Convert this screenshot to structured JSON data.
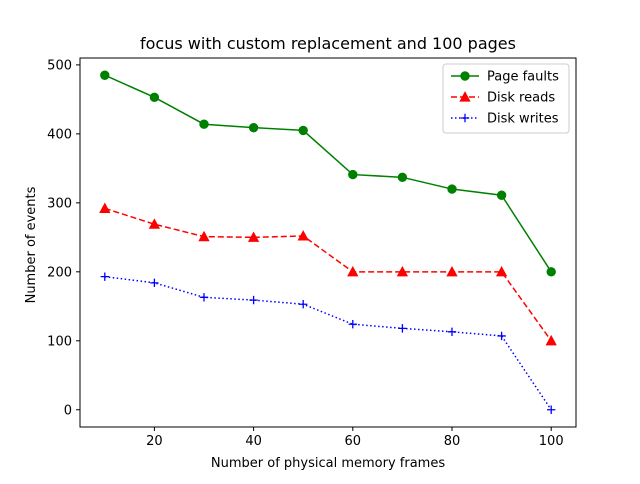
{
  "chart_data": {
    "type": "line",
    "title": "focus with custom replacement and 100 pages",
    "xlabel": "Number of physical memory frames",
    "ylabel": "Number of events",
    "xlim": [
      5,
      105
    ],
    "ylim": [
      -25,
      510
    ],
    "xticks": [
      20,
      40,
      60,
      80,
      100
    ],
    "yticks": [
      0,
      100,
      200,
      300,
      400,
      500
    ],
    "grid": false,
    "legend_position": "top-right",
    "x": [
      10,
      20,
      30,
      40,
      50,
      60,
      70,
      80,
      90,
      100
    ],
    "series": [
      {
        "name": "Page faults",
        "color": "#008000",
        "line_style": "solid",
        "marker": "circle",
        "values": [
          485,
          453,
          414,
          409,
          405,
          341,
          337,
          320,
          311,
          200
        ]
      },
      {
        "name": "Disk reads",
        "color": "#ff0000",
        "line_style": "dashed",
        "marker": "triangle",
        "values": [
          292,
          269,
          251,
          250,
          252,
          200,
          200,
          200,
          200,
          100
        ]
      },
      {
        "name": "Disk writes",
        "color": "#0000ff",
        "line_style": "dotted",
        "marker": "plus",
        "values": [
          193,
          184,
          163,
          159,
          153,
          124,
          118,
          113,
          107,
          0
        ]
      }
    ]
  }
}
